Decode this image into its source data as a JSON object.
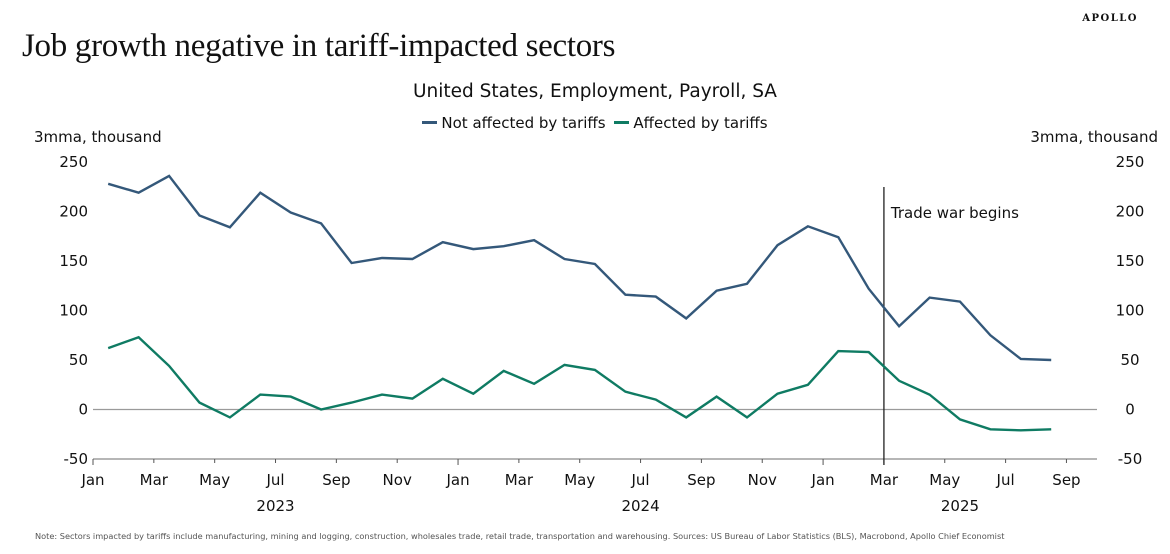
{
  "brand": "APOLLO",
  "headline": "Job growth negative in tariff-impacted sectors",
  "note": "Note: Sectors impacted by tariffs include manufacturing, mining and logging, construction, wholesales trade, retail trade, transportation and warehousing. Sources: US Bureau of Labor Statistics (BLS), Macrobond, Apollo Chief Economist",
  "colors": {
    "not_affected": "#34587a",
    "affected": "#0f7b63",
    "zero_line": "#9a9a9a",
    "annotation_line": "#222222"
  },
  "chart_data": {
    "type": "line",
    "title": "United States, Employment, Payroll, SA",
    "ylabel_left": "3mma, thousand",
    "ylabel_right": "3mma, thousand",
    "xlabel": "",
    "ylim": [
      -50,
      250
    ],
    "yticks": [
      250,
      200,
      150,
      100,
      50,
      0,
      -50
    ],
    "grid": false,
    "legend_position": "top-center",
    "x_tick_labels": [
      "Jan",
      "Mar",
      "May",
      "Jul",
      "Sep",
      "Nov",
      "Jan",
      "Mar",
      "May",
      "Jul",
      "Sep",
      "Nov",
      "Jan",
      "Mar",
      "May",
      "Jul",
      "Sep"
    ],
    "x_tick_months": [
      0,
      2,
      4,
      6,
      8,
      10,
      12,
      14,
      16,
      18,
      20,
      22,
      24,
      26,
      28,
      30,
      32
    ],
    "year_labels": [
      {
        "label": "2023",
        "month": 6
      },
      {
        "label": "2024",
        "month": 18
      },
      {
        "label": "2025",
        "month": 28.5
      }
    ],
    "x": [
      "2023-01",
      "2023-02",
      "2023-03",
      "2023-04",
      "2023-05",
      "2023-06",
      "2023-07",
      "2023-08",
      "2023-09",
      "2023-10",
      "2023-11",
      "2023-12",
      "2024-01",
      "2024-02",
      "2024-03",
      "2024-04",
      "2024-05",
      "2024-06",
      "2024-07",
      "2024-08",
      "2024-09",
      "2024-10",
      "2024-11",
      "2024-12",
      "2025-01",
      "2025-02",
      "2025-03",
      "2025-04",
      "2025-05",
      "2025-06",
      "2025-07",
      "2025-08"
    ],
    "series": [
      {
        "name": "Not affected by tariffs",
        "color_key": "not_affected",
        "values": [
          228,
          219,
          236,
          196,
          184,
          219,
          199,
          188,
          148,
          153,
          152,
          169,
          162,
          165,
          171,
          152,
          147,
          116,
          114,
          92,
          120,
          127,
          166,
          185,
          174,
          122,
          84,
          113,
          109,
          75,
          51,
          50
        ]
      },
      {
        "name": "Affected by tariffs",
        "color_key": "affected",
        "values": [
          62,
          73,
          44,
          7,
          -8,
          15,
          13,
          0,
          7,
          15,
          11,
          31,
          16,
          39,
          26,
          45,
          40,
          18,
          10,
          -8,
          13,
          -8,
          16,
          25,
          59,
          58,
          29,
          15,
          -10,
          -20,
          -21,
          -20
        ]
      }
    ],
    "annotations": [
      {
        "type": "vline",
        "month": 26,
        "label": "Trade war begins"
      }
    ]
  }
}
